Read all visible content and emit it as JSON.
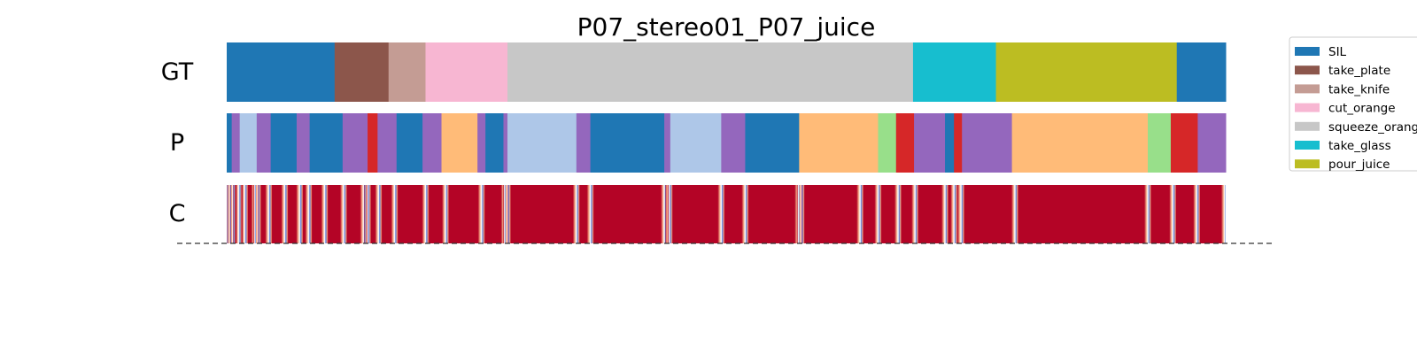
{
  "chart_data": {
    "type": "segmentation-timeline",
    "title": "P07_stereo01_P07_juice",
    "x_range": [
      0,
      1000
    ],
    "rows": [
      {
        "label": "GT",
        "segments": [
          {
            "start": 0,
            "end": 108,
            "class": "SIL"
          },
          {
            "start": 108,
            "end": 162,
            "class": "take_plate"
          },
          {
            "start": 162,
            "end": 199,
            "class": "take_knife"
          },
          {
            "start": 199,
            "end": 281,
            "class": "cut_orange"
          },
          {
            "start": 281,
            "end": 687,
            "class": "squeeze_orange"
          },
          {
            "start": 687,
            "end": 770,
            "class": "take_glass"
          },
          {
            "start": 770,
            "end": 951,
            "class": "pour_juice"
          },
          {
            "start": 951,
            "end": 1000,
            "class": "SIL"
          }
        ]
      },
      {
        "label": "P",
        "segments": [
          {
            "start": 0,
            "end": 5,
            "color": "#1f77b4"
          },
          {
            "start": 5,
            "end": 13,
            "color": "#9467bd"
          },
          {
            "start": 13,
            "end": 30,
            "color": "#aec7e8"
          },
          {
            "start": 30,
            "end": 44,
            "color": "#9467bd"
          },
          {
            "start": 44,
            "end": 70,
            "color": "#1f77b4"
          },
          {
            "start": 70,
            "end": 83,
            "color": "#9467bd"
          },
          {
            "start": 83,
            "end": 116,
            "color": "#1f77b4"
          },
          {
            "start": 116,
            "end": 141,
            "color": "#9467bd"
          },
          {
            "start": 141,
            "end": 151,
            "color": "#d62728"
          },
          {
            "start": 151,
            "end": 170,
            "color": "#9467bd"
          },
          {
            "start": 170,
            "end": 196,
            "color": "#1f77b4"
          },
          {
            "start": 196,
            "end": 215,
            "color": "#9467bd"
          },
          {
            "start": 215,
            "end": 251,
            "color": "#ffbb78"
          },
          {
            "start": 251,
            "end": 259,
            "color": "#9467bd"
          },
          {
            "start": 259,
            "end": 277,
            "color": "#1f77b4"
          },
          {
            "start": 277,
            "end": 281,
            "color": "#9467bd"
          },
          {
            "start": 281,
            "end": 350,
            "color": "#aec7e8"
          },
          {
            "start": 350,
            "end": 364,
            "color": "#9467bd"
          },
          {
            "start": 364,
            "end": 438,
            "color": "#1f77b4"
          },
          {
            "start": 438,
            "end": 444,
            "color": "#9467bd"
          },
          {
            "start": 444,
            "end": 495,
            "color": "#aec7e8"
          },
          {
            "start": 495,
            "end": 519,
            "color": "#9467bd"
          },
          {
            "start": 519,
            "end": 573,
            "color": "#1f77b4"
          },
          {
            "start": 573,
            "end": 652,
            "color": "#ffbb78"
          },
          {
            "start": 652,
            "end": 670,
            "color": "#98df8a"
          },
          {
            "start": 670,
            "end": 688,
            "color": "#d62728"
          },
          {
            "start": 688,
            "end": 719,
            "color": "#9467bd"
          },
          {
            "start": 719,
            "end": 728,
            "color": "#1f77b4"
          },
          {
            "start": 728,
            "end": 736,
            "color": "#d62728"
          },
          {
            "start": 736,
            "end": 786,
            "color": "#9467bd"
          },
          {
            "start": 786,
            "end": 922,
            "color": "#ffbb78"
          },
          {
            "start": 922,
            "end": 945,
            "color": "#98df8a"
          },
          {
            "start": 945,
            "end": 972,
            "color": "#d62728"
          },
          {
            "start": 972,
            "end": 1000,
            "color": "#9467bd"
          }
        ]
      },
      {
        "label": "C",
        "confidence_dips": [
          0,
          3,
          6,
          12,
          18,
          28,
          31,
          42,
          58,
          73,
          82,
          98,
          117,
          137,
          141,
          152,
          168,
          199,
          219,
          255,
          278,
          281,
          350,
          364,
          438,
          443,
          495,
          519,
          572,
          575,
          634,
          652,
          672,
          689,
          719,
          728,
          735,
          789,
          922,
          947,
          971,
          999
        ]
      }
    ],
    "legend": [
      {
        "label": "SIL",
        "color": "#1f77b4"
      },
      {
        "label": "take_plate",
        "color": "#8c564b"
      },
      {
        "label": "take_knife",
        "color": "#c49c94"
      },
      {
        "label": "cut_orange",
        "color": "#f7b6d2"
      },
      {
        "label": "squeeze_orange",
        "color": "#c7c7c7"
      },
      {
        "label": "take_glass",
        "color": "#17becf"
      },
      {
        "label": "pour_juice",
        "color": "#bcbd22"
      }
    ],
    "legend_position": "right",
    "confidence_colors": {
      "high": "#b40426",
      "low": "#5a78d8"
    },
    "baseline": "dashed"
  }
}
